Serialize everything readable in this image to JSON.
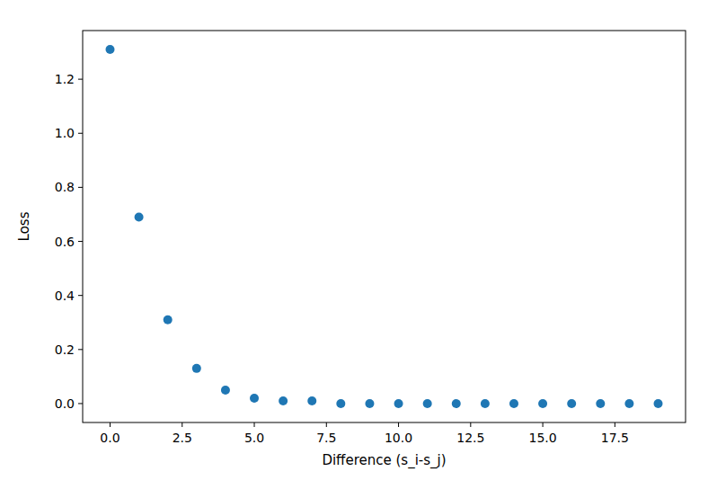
{
  "chart_data": {
    "type": "scatter",
    "x_label": "Difference (s_i-s_j)",
    "y_label": "Loss",
    "x": [
      0,
      1,
      2,
      3,
      4,
      5,
      6,
      7,
      8,
      9,
      10,
      11,
      12,
      13,
      14,
      15,
      16,
      17,
      18,
      19
    ],
    "values": [
      1.31,
      0.69,
      0.31,
      0.13,
      0.05,
      0.02,
      0.01,
      0.01,
      0,
      0,
      0,
      0,
      0,
      0,
      0,
      0,
      0,
      0,
      0,
      0
    ],
    "color": "#1f77b4",
    "marker": "circle",
    "grid": false,
    "xlim": [
      -0.95,
      19.95
    ],
    "ylim": [
      -0.07,
      1.38
    ],
    "xticks": [
      {
        "value": 0,
        "label": "0.0"
      },
      {
        "value": 2.5,
        "label": "2.5"
      },
      {
        "value": 5,
        "label": "5.0"
      },
      {
        "value": 7.5,
        "label": "7.5"
      },
      {
        "value": 10,
        "label": "10.0"
      },
      {
        "value": 12.5,
        "label": "12.5"
      },
      {
        "value": 15,
        "label": "15.0"
      },
      {
        "value": 17.5,
        "label": "17.5"
      }
    ],
    "yticks": [
      {
        "value": 0,
        "label": "0.0"
      },
      {
        "value": 0.2,
        "label": "0.2"
      },
      {
        "value": 0.4,
        "label": "0.4"
      },
      {
        "value": 0.6,
        "label": "0.6"
      },
      {
        "value": 0.8,
        "label": "0.8"
      },
      {
        "value": 1.0,
        "label": "1.0"
      },
      {
        "value": 1.2,
        "label": "1.2"
      }
    ]
  }
}
